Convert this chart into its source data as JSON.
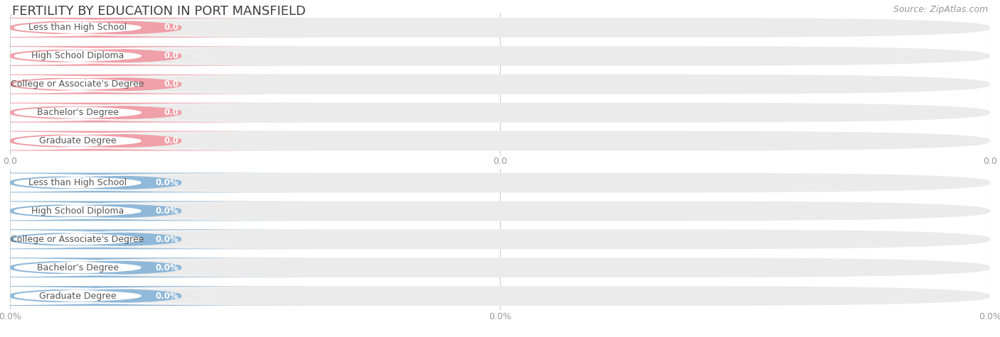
{
  "title": "FERTILITY BY EDUCATION IN PORT MANSFIELD",
  "source": "Source: ZipAtlas.com",
  "categories": [
    "Less than High School",
    "High School Diploma",
    "College or Associate's Degree",
    "Bachelor's Degree",
    "Graduate Degree"
  ],
  "top_values": [
    0.0,
    0.0,
    0.0,
    0.0,
    0.0
  ],
  "bottom_values": [
    0.0,
    0.0,
    0.0,
    0.0,
    0.0
  ],
  "top_bar_color": "#f0a0a8",
  "bottom_bar_color": "#90b8d8",
  "bar_bg_color": "#ebebeb",
  "label_bg_color": "#ffffff",
  "bg_color": "#ffffff",
  "title_color": "#404040",
  "label_text_color": "#555555",
  "axis_tick_color": "#999999",
  "top_value_text_color": "#f0a0a8",
  "bottom_value_text_color": "#90b8d8",
  "top_axis_label": "0.0",
  "bottom_axis_label": "0.0%",
  "source_color": "#999999"
}
